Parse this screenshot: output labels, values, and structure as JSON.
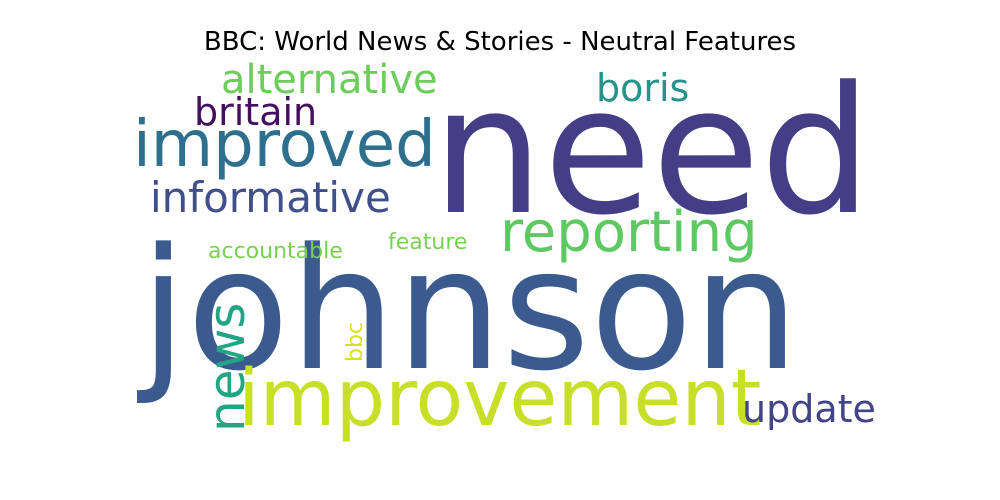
{
  "chart_data": {
    "type": "wordcloud",
    "title": "BBC: World News & Stories - Neutral Features",
    "words": [
      {
        "text": "johnson",
        "color": "#3b5b8f"
      },
      {
        "text": "need",
        "color": "#433e85"
      },
      {
        "text": "improvement",
        "color": "#c8df2a"
      },
      {
        "text": "improved",
        "color": "#2e6f8e"
      },
      {
        "text": "reporting",
        "color": "#5ec962"
      },
      {
        "text": "informative",
        "color": "#3e4f8a"
      },
      {
        "text": "news",
        "color": "#21a585"
      },
      {
        "text": "update",
        "color": "#414487"
      },
      {
        "text": "alternative",
        "color": "#6ccd5a"
      },
      {
        "text": "britain",
        "color": "#440f5f"
      },
      {
        "text": "boris",
        "color": "#25938b"
      },
      {
        "text": "accountable",
        "color": "#7ad151"
      },
      {
        "text": "feature",
        "color": "#7ad151"
      },
      {
        "text": "bbc",
        "color": "#d8e21b"
      }
    ]
  }
}
